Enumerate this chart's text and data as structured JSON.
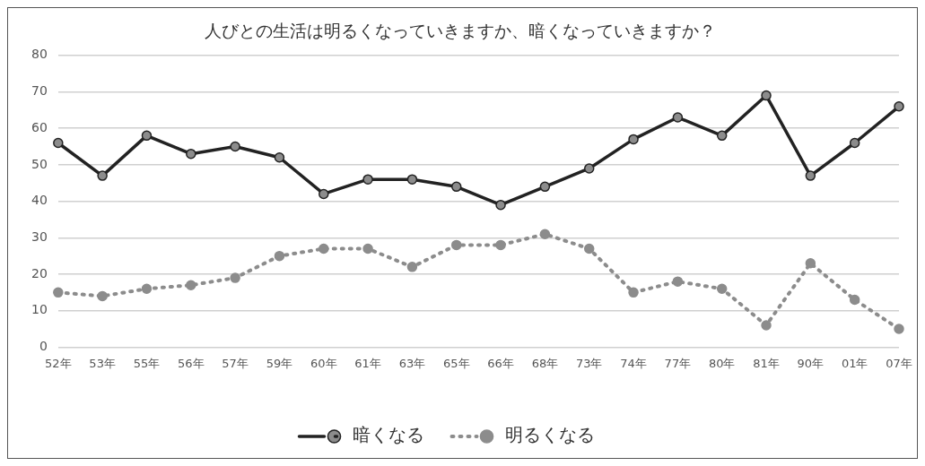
{
  "chart_data": {
    "type": "line",
    "title": "人びとの生活は明るくなっていきますか、暗くなっていきますか？",
    "categories": [
      "52年",
      "53年",
      "55年",
      "56年",
      "57年",
      "59年",
      "60年",
      "61年",
      "63年",
      "65年",
      "66年",
      "68年",
      "73年",
      "74年",
      "77年",
      "80年",
      "81年",
      "90年",
      "01年",
      "07年"
    ],
    "series": [
      {
        "name": "暗くなる",
        "color": "#222222",
        "line_style": "solid",
        "values": [
          56,
          47,
          58,
          53,
          55,
          52,
          42,
          46,
          46,
          44,
          39,
          44,
          49,
          57,
          63,
          58,
          69,
          47,
          56,
          66
        ]
      },
      {
        "name": "明るくなる",
        "color": "#8c8c8c",
        "line_style": "dotted",
        "values": [
          15,
          14,
          16,
          17,
          19,
          25,
          27,
          27,
          22,
          28,
          28,
          31,
          27,
          15,
          18,
          16,
          6,
          23,
          13,
          5
        ]
      }
    ],
    "ylim": [
      0,
      80
    ],
    "yticks": [
      0,
      10,
      20,
      30,
      40,
      50,
      60,
      70,
      80
    ],
    "grid": "y",
    "legend": "bottom",
    "marker": "circle"
  }
}
